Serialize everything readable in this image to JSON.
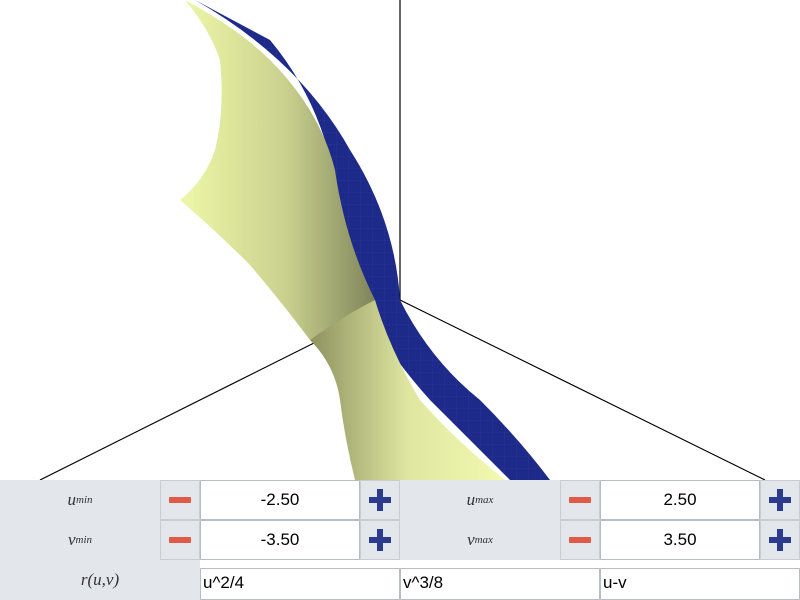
{
  "surface": {
    "front_color": "#eef8a8",
    "back_color": "#1e2a8a",
    "axis_color": "#000000"
  },
  "controls": {
    "u_min": {
      "symbol": "u",
      "subscript": "min",
      "value": "-2.50"
    },
    "u_max": {
      "symbol": "u",
      "subscript": "max",
      "value": "2.50"
    },
    "v_min": {
      "symbol": "v",
      "subscript": "min",
      "value": "-3.50"
    },
    "v_max": {
      "symbol": "v",
      "subscript": "max",
      "value": "3.50"
    },
    "r_label": "r(u,v)",
    "r_x": "u^2/4",
    "r_y": "v^3/8",
    "r_z": "u-v"
  },
  "colors": {
    "minus": "#e05a45",
    "plus": "#2a3b8f",
    "panel": "#e3e6ea"
  }
}
